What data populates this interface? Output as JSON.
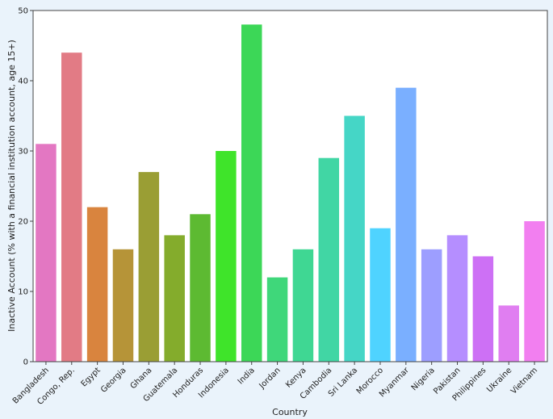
{
  "chart_data": {
    "type": "bar",
    "title": "",
    "xlabel": "Country",
    "ylabel": "Inactive Account (% with a financial institution account, age 15+)",
    "ylim": [
      0,
      50
    ],
    "yticks": [
      0,
      10,
      20,
      30,
      40,
      50
    ],
    "grid": false,
    "legend": "none",
    "categories": [
      "Bangladesh",
      "Congo, Rep.",
      "Egypt",
      "Georgia",
      "Ghana",
      "Guatemala",
      "Honduras",
      "Indonesia",
      "India",
      "Jordan",
      "Kenya",
      "Cambodia",
      "Sri Lanka",
      "Morocco",
      "Myanmar",
      "Nigeria",
      "Pakistan",
      "Philippines",
      "Ukraine",
      "Vietnam"
    ],
    "values": [
      31,
      44,
      22,
      16,
      27,
      18,
      21,
      30,
      48,
      12,
      16,
      29,
      35,
      19,
      39,
      16,
      18,
      15,
      8,
      20
    ],
    "colors": [
      "#e377c2",
      "#e27b85",
      "#d9843e",
      "#b69438",
      "#9a9e34",
      "#84ac2c",
      "#5dba32",
      "#3fe42a",
      "#3cd757",
      "#3fd77a",
      "#3fd793",
      "#41d6a4",
      "#45d6c6",
      "#4fd3ff",
      "#7aafff",
      "#9d9eff",
      "#b58eff",
      "#cd70f5",
      "#e07ef1",
      "#f27ff0"
    ]
  }
}
